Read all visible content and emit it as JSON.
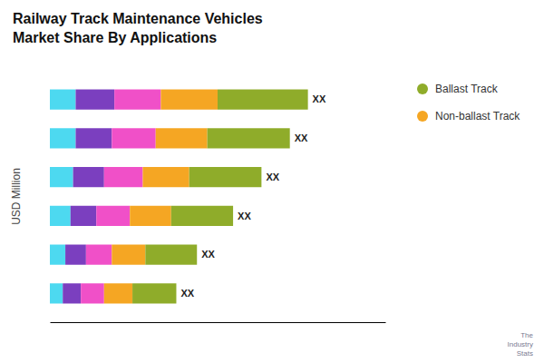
{
  "chart_data": {
    "type": "bar",
    "title": "Railway Track Maintenance Vehicles\nMarket Share By Applications",
    "ylabel": "USD Million",
    "orientation": "horizontal",
    "stacked": true,
    "grid": false,
    "legend": "right",
    "tick_labels": false,
    "categories": [
      null,
      null,
      null,
      null,
      null,
      null
    ],
    "bar_labels": [
      "XX",
      "XX",
      "XX",
      "XX",
      "XX",
      "XX"
    ],
    "series": [
      {
        "color": "#4dd9f0",
        "values": [
          0.1,
          0.1,
          0.09,
          0.08,
          0.06,
          0.05
        ]
      },
      {
        "color": "#7b3fbf",
        "values": [
          0.15,
          0.14,
          0.12,
          0.1,
          0.08,
          0.07
        ]
      },
      {
        "color": "#f050c8",
        "values": [
          0.18,
          0.17,
          0.15,
          0.13,
          0.1,
          0.09
        ]
      },
      {
        "name": "Non-ballast Track",
        "color": "#f5a623",
        "values": [
          0.22,
          0.2,
          0.18,
          0.16,
          0.13,
          0.11
        ]
      },
      {
        "name": "Ballast Track",
        "color": "#8fac2a",
        "values": [
          0.35,
          0.32,
          0.28,
          0.24,
          0.2,
          0.17
        ]
      }
    ],
    "xlim": [
      0,
      1.3
    ],
    "xticks": [],
    "annotations": [
      "The\nIndustry\nStats"
    ]
  }
}
